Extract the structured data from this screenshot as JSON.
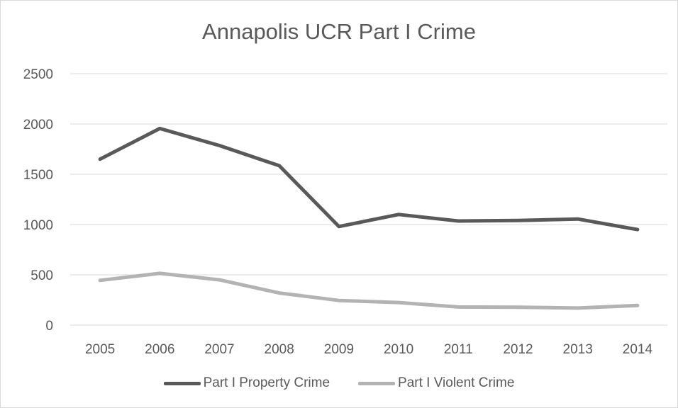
{
  "chart_data": {
    "type": "line",
    "title": "Annapolis UCR Part I Crime",
    "xlabel": "",
    "ylabel": "",
    "categories": [
      "2005",
      "2006",
      "2007",
      "2008",
      "2009",
      "2010",
      "2011",
      "2012",
      "2013",
      "2014"
    ],
    "ylim": [
      0,
      2500
    ],
    "yticks": [
      0,
      500,
      1000,
      1500,
      2000,
      2500
    ],
    "grid": true,
    "legend_position": "bottom",
    "series": [
      {
        "name": "Part I Property Crime",
        "color": "#595959",
        "values": [
          1650,
          1955,
          1785,
          1585,
          980,
          1100,
          1035,
          1040,
          1055,
          950
        ]
      },
      {
        "name": "Part I Violent Crime",
        "color": "#b3b3b3",
        "values": [
          445,
          515,
          450,
          320,
          245,
          225,
          180,
          178,
          170,
          195
        ]
      }
    ]
  }
}
